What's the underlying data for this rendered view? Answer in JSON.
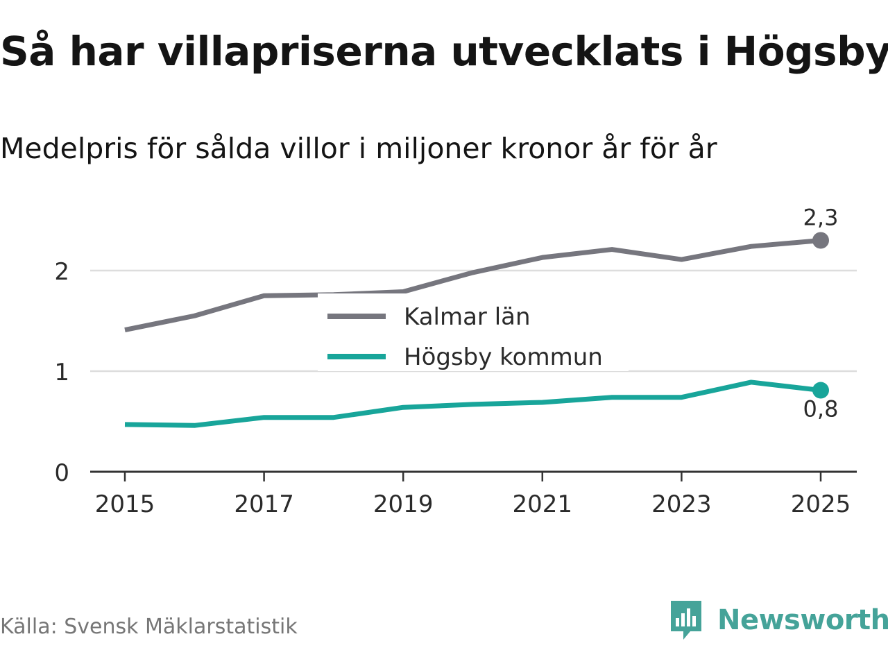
{
  "header": {
    "title": "Så har villapriserna utvecklats i Högsby",
    "subtitle": "Medelpris för sålda villor i miljoner kronor år för år"
  },
  "footer": {
    "source": "Källa: Svensk Mäklarstatistik",
    "brand": "Newsworthy"
  },
  "colors": {
    "kalmar": "#76767e",
    "hogsby": "#18a59a",
    "grid": "#dddddd",
    "axis": "#333333",
    "brand": "#45a399"
  },
  "chart_data": {
    "type": "line",
    "title": "Så har villapriserna utvecklats i Högsby",
    "subtitle": "Medelpris för sålda villor i miljoner kronor år för år",
    "xlabel": "",
    "ylabel": "",
    "x": [
      2015,
      2016,
      2017,
      2018,
      2019,
      2020,
      2021,
      2022,
      2023,
      2024,
      2025
    ],
    "x_tick_labels": [
      "2015",
      "2017",
      "2019",
      "2021",
      "2023",
      "2025"
    ],
    "x_ticks": [
      2015,
      2017,
      2019,
      2021,
      2023,
      2025
    ],
    "y_ticks": [
      0,
      1,
      2
    ],
    "y_tick_labels": [
      "0",
      "1",
      "2"
    ],
    "ylim": [
      0,
      2.5
    ],
    "xlim": [
      2014.5,
      2025.5
    ],
    "grid": true,
    "legend_position": "center",
    "series": [
      {
        "name": "Kalmar län",
        "color": "#76767e",
        "values": [
          1.41,
          1.55,
          1.75,
          1.76,
          1.79,
          1.98,
          2.13,
          2.21,
          2.11,
          2.24,
          2.3
        ],
        "end_label": "2,3"
      },
      {
        "name": "Högsby kommun",
        "color": "#18a59a",
        "values": [
          0.47,
          0.46,
          0.54,
          0.54,
          0.64,
          0.67,
          0.69,
          0.74,
          0.74,
          0.89,
          0.81
        ],
        "end_label": "0,8"
      }
    ]
  }
}
